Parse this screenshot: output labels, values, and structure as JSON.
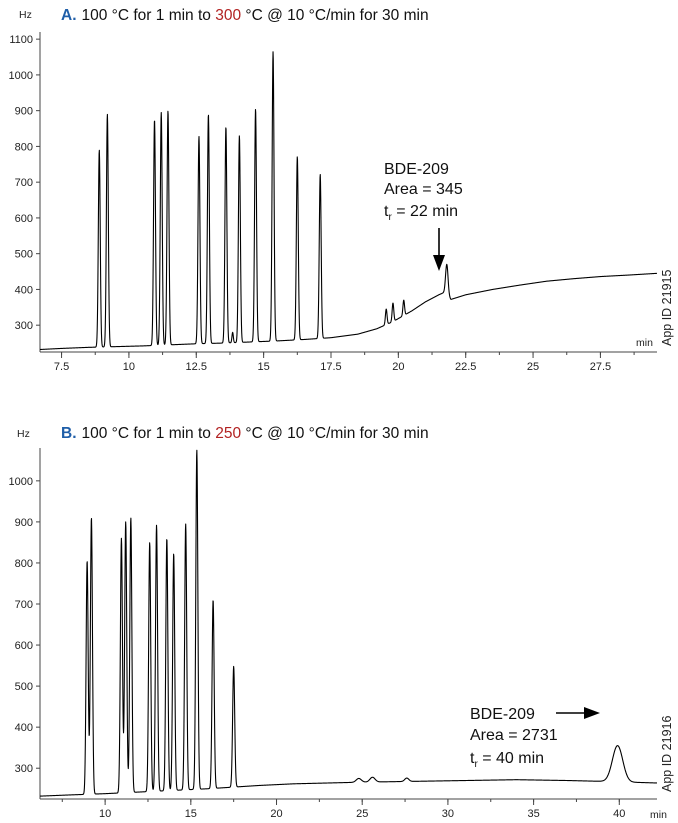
{
  "chart_data": [
    {
      "type": "line",
      "panel_letter": "A.",
      "title_pre": "100 °C for 1 min to ",
      "title_highlight": "300",
      "title_post": " °C @ 10 °C/min for 30 min",
      "ylabel": "Hz",
      "xlabel": "min",
      "xlim": [
        6.7,
        29.6
      ],
      "ylim": [
        225,
        1120
      ],
      "x_ticks": [
        7.5,
        10,
        12.5,
        15,
        17.5,
        20,
        22.5,
        25,
        27.5
      ],
      "x_tick_labels": [
        "7.5",
        "10",
        "12.5",
        "15",
        "17.5",
        "20",
        "22.5",
        "25",
        "27.5"
      ],
      "y_ticks": [
        300,
        400,
        500,
        600,
        700,
        800,
        900,
        1000,
        1100
      ],
      "y_tick_labels": [
        "300",
        "400",
        "500",
        "600",
        "700",
        "800",
        "900",
        "1000",
        "1100"
      ],
      "grid": false,
      "baseline": [
        [
          6.7,
          232
        ],
        [
          7.5,
          235
        ],
        [
          8.5,
          238
        ],
        [
          9.5,
          240
        ],
        [
          10.5,
          242
        ],
        [
          11.5,
          245
        ],
        [
          12.5,
          248
        ],
        [
          13.5,
          250
        ],
        [
          14.5,
          253
        ],
        [
          15.5,
          256
        ],
        [
          16.5,
          260
        ],
        [
          17.5,
          265
        ],
        [
          18.5,
          275
        ],
        [
          19.2,
          290
        ],
        [
          19.8,
          310
        ],
        [
          20.5,
          340
        ],
        [
          21.0,
          365
        ],
        [
          21.5,
          385
        ],
        [
          21.75,
          393
        ],
        [
          21.95,
          372
        ],
        [
          22.5,
          385
        ],
        [
          23.5,
          400
        ],
        [
          24.5,
          412
        ],
        [
          25.5,
          423
        ],
        [
          26.5,
          430
        ],
        [
          27.5,
          436
        ],
        [
          28.5,
          440
        ],
        [
          29.6,
          445
        ]
      ],
      "peaks": [
        {
          "x": 8.9,
          "y": 790,
          "w": 0.035
        },
        {
          "x": 9.2,
          "y": 890,
          "w": 0.035
        },
        {
          "x": 10.95,
          "y": 875,
          "w": 0.035
        },
        {
          "x": 11.2,
          "y": 895,
          "w": 0.035
        },
        {
          "x": 11.45,
          "y": 900,
          "w": 0.035
        },
        {
          "x": 12.6,
          "y": 828,
          "w": 0.035
        },
        {
          "x": 12.95,
          "y": 890,
          "w": 0.035
        },
        {
          "x": 13.6,
          "y": 855,
          "w": 0.035
        },
        {
          "x": 13.85,
          "y": 280,
          "w": 0.025
        },
        {
          "x": 14.1,
          "y": 830,
          "w": 0.035
        },
        {
          "x": 14.7,
          "y": 905,
          "w": 0.035
        },
        {
          "x": 15.35,
          "y": 1065,
          "w": 0.035
        },
        {
          "x": 16.25,
          "y": 772,
          "w": 0.035
        },
        {
          "x": 17.1,
          "y": 722,
          "w": 0.035
        },
        {
          "x": 19.55,
          "y": 345,
          "w": 0.03
        },
        {
          "x": 19.8,
          "y": 362,
          "w": 0.03
        },
        {
          "x": 20.2,
          "y": 370,
          "w": 0.03
        },
        {
          "x": 21.8,
          "y": 470,
          "w": 0.045
        }
      ],
      "annotation": {
        "name": "BDE-209",
        "area": "Area = 345",
        "tr_pre": "t",
        "tr_sub": "r",
        "tr_post": " = 22 min"
      },
      "side_label": "App ID 21915"
    },
    {
      "type": "line",
      "panel_letter": "B.",
      "title_pre": "100 °C for 1 min to ",
      "title_highlight": "250",
      "title_post": " °C @ 10 °C/min for 30 min",
      "ylabel": "Hz",
      "xlabel": "min",
      "xlim": [
        6.2,
        42.2
      ],
      "ylim": [
        225,
        1080
      ],
      "x_ticks": [
        10,
        15,
        20,
        25,
        30,
        35,
        40
      ],
      "x_tick_labels": [
        "10",
        "15",
        "20",
        "25",
        "30",
        "35",
        "40"
      ],
      "y_ticks": [
        300,
        400,
        500,
        600,
        700,
        800,
        900,
        1000
      ],
      "y_tick_labels": [
        "300",
        "400",
        "500",
        "600",
        "700",
        "800",
        "900",
        "1000"
      ],
      "grid": false,
      "baseline": [
        [
          6.2,
          232
        ],
        [
          8,
          235
        ],
        [
          10,
          238
        ],
        [
          12,
          242
        ],
        [
          14,
          246
        ],
        [
          16,
          250
        ],
        [
          17.5,
          254
        ],
        [
          19,
          258
        ],
        [
          21,
          262
        ],
        [
          23,
          264
        ],
        [
          25,
          266
        ],
        [
          28,
          268
        ],
        [
          31,
          270
        ],
        [
          34,
          272
        ],
        [
          37,
          270
        ],
        [
          39,
          268
        ],
        [
          42.2,
          264
        ]
      ],
      "peaks": [
        {
          "x": 8.95,
          "y": 805,
          "w": 0.06
        },
        {
          "x": 9.2,
          "y": 910,
          "w": 0.06
        },
        {
          "x": 10.95,
          "y": 860,
          "w": 0.06
        },
        {
          "x": 11.2,
          "y": 900,
          "w": 0.06
        },
        {
          "x": 11.5,
          "y": 910,
          "w": 0.06
        },
        {
          "x": 12.6,
          "y": 850,
          "w": 0.06
        },
        {
          "x": 13.0,
          "y": 892,
          "w": 0.06
        },
        {
          "x": 13.6,
          "y": 860,
          "w": 0.06
        },
        {
          "x": 14.0,
          "y": 823,
          "w": 0.06
        },
        {
          "x": 14.7,
          "y": 895,
          "w": 0.06
        },
        {
          "x": 15.35,
          "y": 1075,
          "w": 0.06
        },
        {
          "x": 16.3,
          "y": 710,
          "w": 0.06
        },
        {
          "x": 17.5,
          "y": 548,
          "w": 0.06
        },
        {
          "x": 24.8,
          "y": 275,
          "w": 0.15
        },
        {
          "x": 25.6,
          "y": 278,
          "w": 0.15
        },
        {
          "x": 27.6,
          "y": 276,
          "w": 0.12
        },
        {
          "x": 39.9,
          "y": 355,
          "w": 0.3
        }
      ],
      "annotation": {
        "name": "BDE-209",
        "area": "Area = 2731",
        "tr_pre": "t",
        "tr_sub": "r",
        "tr_post": " = 40 min"
      },
      "side_label": "App ID 21916"
    }
  ],
  "colors": {
    "panel_letter": "#1f5ea8",
    "highlight": "#b22222",
    "trace": "#000000",
    "axis": "#444444"
  }
}
